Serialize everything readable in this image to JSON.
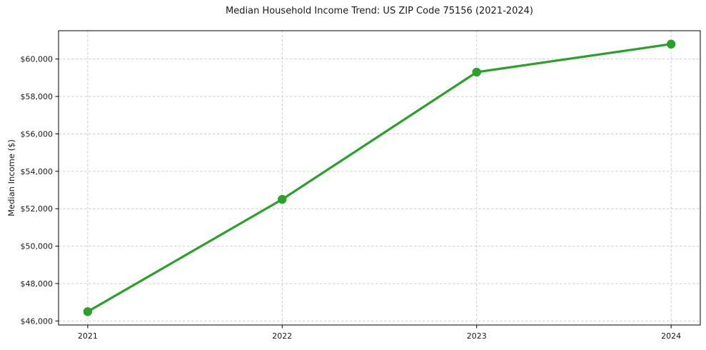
{
  "chart_data": {
    "type": "line",
    "title": "Median Household Income Trend: US ZIP Code 75156 (2021-2024)",
    "xlabel": "",
    "ylabel": "Median Income ($)",
    "x": [
      2021,
      2022,
      2023,
      2024
    ],
    "x_tick_labels": [
      "2021",
      "2022",
      "2023",
      "2024"
    ],
    "series": [
      {
        "values": [
          46500,
          52500,
          59300,
          60800
        ]
      }
    ],
    "xlim": [
      2020.85,
      2024.15
    ],
    "ylim": [
      45785,
      61515
    ],
    "yticks": [
      46000,
      48000,
      50000,
      52000,
      54000,
      56000,
      58000,
      60000
    ],
    "y_tick_labels": [
      "$46,000",
      "$48,000",
      "$50,000",
      "$52,000",
      "$54,000",
      "$56,000",
      "$58,000",
      "$60,000"
    ],
    "grid": true,
    "grid_linestyle": "dashed",
    "legend_position": "none",
    "marker": "circle",
    "colors": {
      "line": "#2ca02c",
      "marker": "#2ca02c",
      "grid": "#d0d0d0",
      "spine": "#000000",
      "text": "#1a1a1a",
      "background": "#ffffff"
    }
  }
}
